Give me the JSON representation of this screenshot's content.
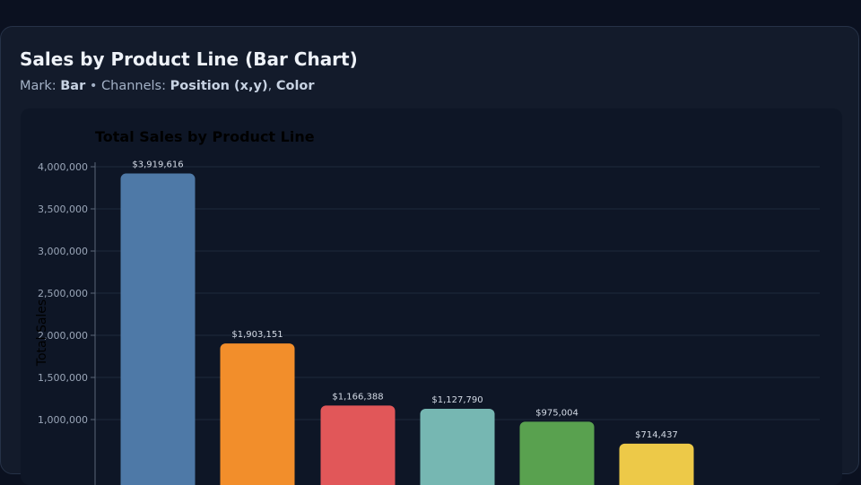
{
  "card": {
    "title": "Sales by Product Line (Bar Chart)",
    "subtitle": {
      "mark_label": "Mark:",
      "mark": "Bar",
      "sep": "•",
      "channels_label": "Channels:",
      "channel_1": "Position (x,y)",
      "channel_sep": ",",
      "channel_2": "Color"
    }
  },
  "chart_data": {
    "type": "bar",
    "title": "Total Sales by Product Line",
    "xlabel": "",
    "ylabel": "Total Sales",
    "ylim": [
      0,
      4000000
    ],
    "yticks": [
      1000000,
      1500000,
      2000000,
      2500000,
      3000000,
      3500000,
      4000000
    ],
    "ytick_labels": [
      "1,000,000",
      "1,500,000",
      "2,000,000",
      "2,500,000",
      "3,000,000",
      "3,500,000",
      "4,000,000"
    ],
    "grid": true,
    "values": [
      3919616,
      1903151,
      1166388,
      1127790,
      975004,
      714437
    ],
    "data_labels": [
      "$3,919,616",
      "$1,903,151",
      "$1,166,388",
      "$1,127,790",
      "$975,004",
      "$714,437"
    ],
    "colors": [
      "#4e79a7",
      "#f28e2b",
      "#e15759",
      "#76b7b2",
      "#59a14f",
      "#edc948"
    ]
  }
}
